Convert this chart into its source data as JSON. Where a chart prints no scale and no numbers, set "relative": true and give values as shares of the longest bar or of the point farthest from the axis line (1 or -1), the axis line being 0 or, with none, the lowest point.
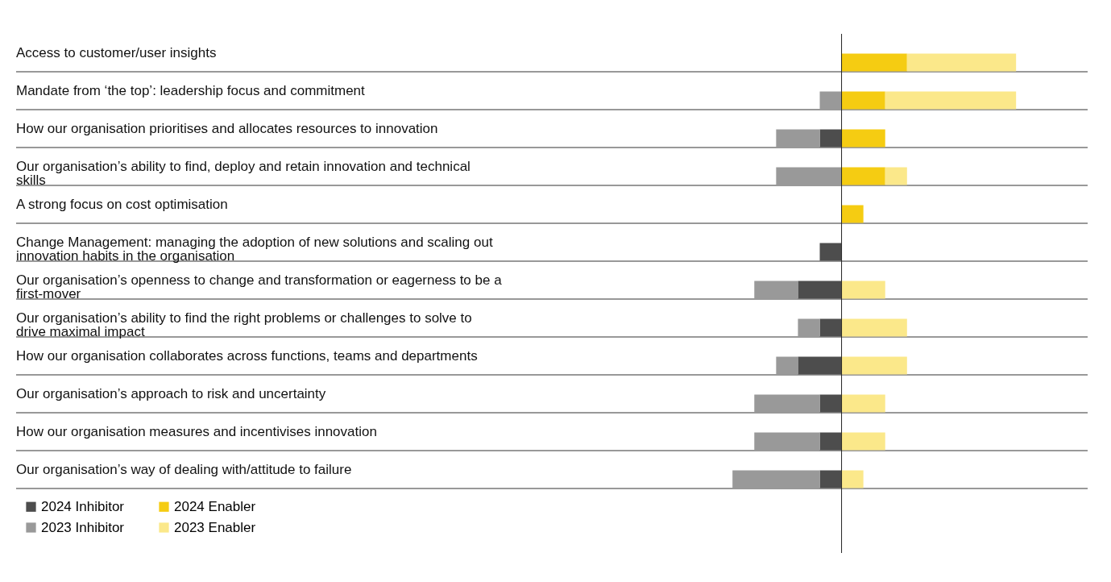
{
  "chart_data": {
    "type": "bar",
    "orientation": "horizontal",
    "stacked": true,
    "relative": true,
    "legend": "bottom",
    "categories": [
      "Access to customer/user insights",
      "Mandate from ‘the top’: leadership focus and commitment",
      "How our organisation prioritises and allocates resources to innovation",
      "Our organisation’s ability to find, deploy and retain innovation and technical skills",
      "A strong focus on cost optimisation",
      "Change Management: managing the adoption of new solutions and scaling out innovation habits in the organisation",
      "Our organisation’s openness to change and transformation or eagerness to be a first-mover",
      "Our organisation’s ability to find the right problems or challenges to solve to drive maximal impact",
      "How our organisation collaborates across functions, teams and departments",
      "Our organisation’s approach to risk and uncertainty",
      "How our organisation measures and incentivises innovation",
      "Our organisation’s way of dealing with/attitude to failure"
    ],
    "series": [
      {
        "name": "2024 Inhibitor",
        "color": "#4d4d4d",
        "values": [
          0,
          0,
          -0.125,
          0,
          0,
          -0.125,
          -0.25,
          -0.125,
          -0.25,
          -0.125,
          -0.125,
          -0.125
        ]
      },
      {
        "name": "2023 Inhibitor",
        "color": "#999999",
        "values": [
          0,
          -0.125,
          -0.25,
          -0.375,
          0,
          0,
          -0.25,
          -0.125,
          -0.125,
          -0.375,
          -0.375,
          -0.5
        ]
      },
      {
        "name": "2024 Enabler",
        "color": "#f5cc12",
        "values": [
          0.375,
          0.25,
          0.25,
          0.25,
          0.125,
          0,
          0,
          0,
          0,
          0,
          0,
          0
        ]
      },
      {
        "name": "2023 Enabler",
        "color": "#fbe88a",
        "values": [
          0.625,
          0.75,
          0,
          0.125,
          0,
          0,
          0.25,
          0.375,
          0.375,
          0.25,
          0.25,
          0.125
        ]
      }
    ]
  }
}
